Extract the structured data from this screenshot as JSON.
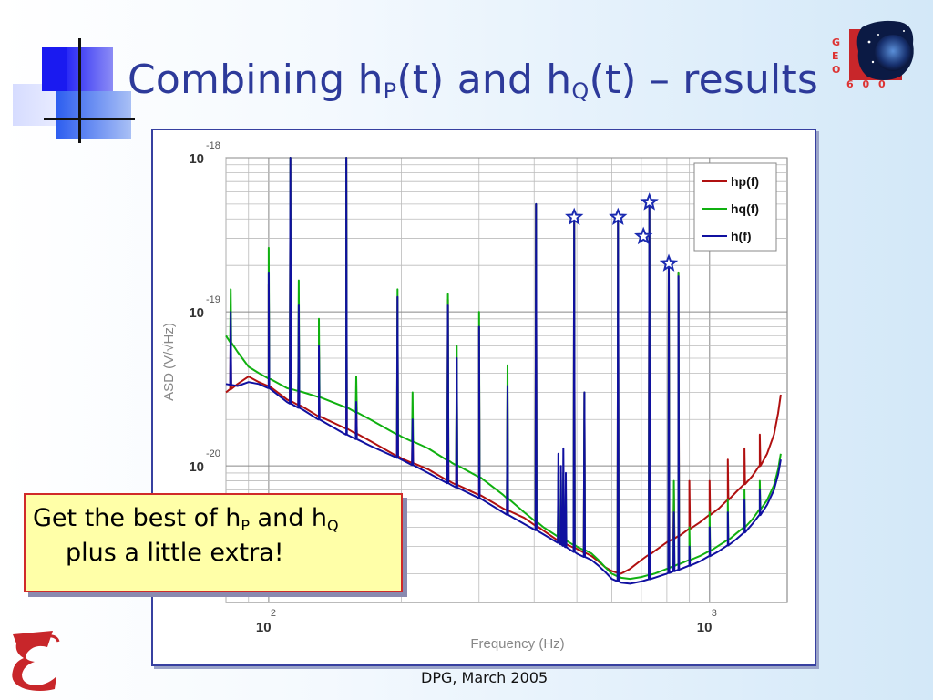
{
  "slide": {
    "title_parts": [
      "Combining h",
      "P",
      "(t) and h",
      "Q",
      "(t) – results"
    ],
    "footer": "DPG, March 2005",
    "geo_letters": [
      "G",
      "E",
      "O",
      "6",
      "0",
      "0"
    ],
    "callout": {
      "line1_parts": [
        "Get the best of h",
        "P",
        " and h",
        "Q"
      ],
      "line2": "plus a little extra!"
    }
  },
  "chart_data": {
    "type": "line",
    "xlabel": "Frequency (Hz)",
    "ylabel": "ASD (V/√Hz)",
    "x_scale": "log",
    "y_scale": "log",
    "xlim": [
      80,
      1500
    ],
    "ylim": [
      1.3e-21,
      1e-18
    ],
    "x_ticks": [
      {
        "value": 100,
        "base": "10",
        "exp": "2"
      },
      {
        "value": 1000,
        "base": "10",
        "exp": "3"
      }
    ],
    "y_ticks": [
      {
        "value": 1e-18,
        "base": "10",
        "exp": "-18"
      },
      {
        "value": 1e-19,
        "base": "10",
        "exp": "-19"
      },
      {
        "value": 1e-20,
        "base": "10",
        "exp": "-20"
      }
    ],
    "grid": true,
    "legend_position": "top-right",
    "colors": {
      "hp": "#b01010",
      "hq": "#10b010",
      "h": "#1010a0"
    },
    "series": [
      {
        "name": "hp(f)",
        "key": "hp",
        "points": [
          [
            80,
            3e-20
          ],
          [
            85,
            3.4e-20
          ],
          [
            90,
            3.8e-20
          ],
          [
            95,
            3.5e-20
          ],
          [
            100,
            3.3e-20
          ],
          [
            110,
            2.7e-20
          ],
          [
            120,
            2.4e-20
          ],
          [
            130,
            2.1e-20
          ],
          [
            150,
            1.75e-20
          ],
          [
            170,
            1.45e-20
          ],
          [
            200,
            1.12e-20
          ],
          [
            230,
            9.5e-21
          ],
          [
            260,
            7.8e-21
          ],
          [
            300,
            6.5e-21
          ],
          [
            340,
            5.3e-21
          ],
          [
            380,
            4.6e-21
          ],
          [
            420,
            3.8e-21
          ],
          [
            460,
            3.2e-21
          ],
          [
            500,
            2.9e-21
          ],
          [
            540,
            2.6e-21
          ],
          [
            560,
            2.4e-21
          ],
          [
            580,
            2.2e-21
          ],
          [
            600,
            2.08e-21
          ],
          [
            630,
            2e-21
          ],
          [
            660,
            2.15e-21
          ],
          [
            700,
            2.45e-21
          ],
          [
            750,
            2.8e-21
          ],
          [
            800,
            3.2e-21
          ],
          [
            850,
            3.5e-21
          ],
          [
            900,
            3.9e-21
          ],
          [
            950,
            4.3e-21
          ],
          [
            1000,
            4.8e-21
          ],
          [
            1050,
            5.3e-21
          ],
          [
            1100,
            6e-21
          ],
          [
            1150,
            6.8e-21
          ],
          [
            1200,
            7.6e-21
          ],
          [
            1250,
            8.6e-21
          ],
          [
            1300,
            1e-20
          ],
          [
            1350,
            1.2e-20
          ],
          [
            1400,
            1.6e-20
          ],
          [
            1430,
            2.2e-20
          ],
          [
            1450,
            2.9e-20
          ]
        ]
      },
      {
        "name": "hq(f)",
        "key": "hq",
        "points": [
          [
            80,
            7e-20
          ],
          [
            85,
            5.5e-20
          ],
          [
            90,
            4.4e-20
          ],
          [
            95,
            4e-20
          ],
          [
            100,
            3.7e-20
          ],
          [
            110,
            3.2e-20
          ],
          [
            120,
            3e-20
          ],
          [
            130,
            2.8e-20
          ],
          [
            150,
            2.4e-20
          ],
          [
            170,
            2e-20
          ],
          [
            200,
            1.55e-20
          ],
          [
            230,
            1.3e-20
          ],
          [
            260,
            1.05e-20
          ],
          [
            300,
            8.5e-21
          ],
          [
            340,
            6.5e-21
          ],
          [
            380,
            5e-21
          ],
          [
            420,
            4e-21
          ],
          [
            460,
            3.4e-21
          ],
          [
            500,
            3e-21
          ],
          [
            540,
            2.7e-21
          ],
          [
            560,
            2.45e-21
          ],
          [
            580,
            2.2e-21
          ],
          [
            600,
            2e-21
          ],
          [
            630,
            1.88e-21
          ],
          [
            660,
            1.85e-21
          ],
          [
            700,
            1.9e-21
          ],
          [
            750,
            2e-21
          ],
          [
            800,
            2.15e-21
          ],
          [
            850,
            2.3e-21
          ],
          [
            900,
            2.45e-21
          ],
          [
            950,
            2.6e-21
          ],
          [
            1000,
            2.8e-21
          ],
          [
            1050,
            3.05e-21
          ],
          [
            1100,
            3.3e-21
          ],
          [
            1150,
            3.65e-21
          ],
          [
            1200,
            4e-21
          ],
          [
            1250,
            4.5e-21
          ],
          [
            1300,
            5.2e-21
          ],
          [
            1350,
            6e-21
          ],
          [
            1400,
            7.5e-21
          ],
          [
            1430,
            9.5e-21
          ],
          [
            1450,
            1.2e-20
          ]
        ]
      },
      {
        "name": "h(f)",
        "key": "h",
        "points": [
          [
            80,
            3.4e-20
          ],
          [
            85,
            3.3e-20
          ],
          [
            90,
            3.5e-20
          ],
          [
            95,
            3.4e-20
          ],
          [
            100,
            3.2e-20
          ],
          [
            110,
            2.6e-20
          ],
          [
            120,
            2.3e-20
          ],
          [
            130,
            2e-20
          ],
          [
            150,
            1.6e-20
          ],
          [
            170,
            1.35e-20
          ],
          [
            200,
            1.1e-20
          ],
          [
            230,
            9e-21
          ],
          [
            260,
            7.5e-21
          ],
          [
            300,
            6.2e-21
          ],
          [
            340,
            5e-21
          ],
          [
            380,
            4.2e-21
          ],
          [
            420,
            3.6e-21
          ],
          [
            460,
            3.1e-21
          ],
          [
            500,
            2.7e-21
          ],
          [
            540,
            2.45e-21
          ],
          [
            560,
            2.25e-21
          ],
          [
            580,
            2.05e-21
          ],
          [
            600,
            1.85e-21
          ],
          [
            630,
            1.75e-21
          ],
          [
            660,
            1.72e-21
          ],
          [
            700,
            1.78e-21
          ],
          [
            750,
            1.88e-21
          ],
          [
            800,
            2e-21
          ],
          [
            850,
            2.12e-21
          ],
          [
            900,
            2.25e-21
          ],
          [
            950,
            2.4e-21
          ],
          [
            1000,
            2.6e-21
          ],
          [
            1050,
            2.8e-21
          ],
          [
            1100,
            3.05e-21
          ],
          [
            1150,
            3.35e-21
          ],
          [
            1200,
            3.7e-21
          ],
          [
            1250,
            4.2e-21
          ],
          [
            1300,
            4.8e-21
          ],
          [
            1350,
            5.6e-21
          ],
          [
            1400,
            7e-21
          ],
          [
            1430,
            8.8e-21
          ],
          [
            1450,
            1.1e-20
          ]
        ]
      }
    ],
    "peaks": [
      {
        "f": 82,
        "hp": 8e-20,
        "hq": 1.4e-19,
        "h": 1e-19
      },
      {
        "f": 100,
        "hp": 1.5e-19,
        "hq": 2.6e-19,
        "h": 1.8e-19
      },
      {
        "f": 112,
        "hp": 1e-18,
        "hq": 1e-18,
        "h": 1e-18
      },
      {
        "f": 117,
        "hp": 9e-20,
        "hq": 1.6e-19,
        "h": 1.1e-19
      },
      {
        "f": 130,
        "hp": 6e-20,
        "hq": 9e-20,
        "h": 6e-20
      },
      {
        "f": 150,
        "hp": 1e-18,
        "hq": 1e-18,
        "h": 1e-18
      },
      {
        "f": 158,
        "hp": 2.6e-20,
        "hq": 3.8e-20,
        "h": 2.6e-20
      },
      {
        "f": 196,
        "hp": 1.25e-19,
        "hq": 1.4e-19,
        "h": 1.25e-19
      },
      {
        "f": 212,
        "hp": 2e-20,
        "hq": 3e-20,
        "h": 2e-20
      },
      {
        "f": 255,
        "hp": 1.2e-19,
        "hq": 1.3e-19,
        "h": 1.1e-19
      },
      {
        "f": 267,
        "hp": 5e-20,
        "hq": 6e-20,
        "h": 5e-20
      },
      {
        "f": 300,
        "hp": 8e-20,
        "hq": 1e-19,
        "h": 8e-20
      },
      {
        "f": 348,
        "hp": 3e-20,
        "hq": 4.5e-20,
        "h": 3.3e-20
      },
      {
        "f": 404,
        "hp": 5e-19,
        "hq": 5e-19,
        "h": 5e-19
      },
      {
        "f": 454,
        "hp": 7e-21,
        "hq": 9e-21,
        "h": 1.2e-20
      },
      {
        "f": 460,
        "hp": 6e-21,
        "hq": 8e-21,
        "h": 1e-20
      },
      {
        "f": 466,
        "hp": 7e-21,
        "hq": 9e-21,
        "h": 1.3e-20
      },
      {
        "f": 472,
        "hp": 5e-21,
        "hq": 7e-21,
        "h": 9e-21
      },
      {
        "f": 493,
        "hp": 4e-19,
        "hq": 4e-19,
        "h": 4e-19
      },
      {
        "f": 520,
        "hp": 3e-20,
        "hq": 3e-20,
        "h": 3e-20
      },
      {
        "f": 620,
        "hp": 4e-19,
        "hq": 4e-19,
        "h": 4e-19
      },
      {
        "f": 730,
        "hp": 5e-19,
        "hq": 5e-19,
        "h": 5e-19
      },
      {
        "f": 808,
        "hp": 2e-19,
        "hq": 2.2e-19,
        "h": 2e-19
      },
      {
        "f": 830,
        "hp": 7e-21,
        "hq": 8e-21,
        "h": 5e-21
      },
      {
        "f": 850,
        "hp": 1.8e-19,
        "hq": 1.8e-19,
        "h": 1.7e-19
      },
      {
        "f": 900,
        "hp": 8e-21,
        "hq": 4e-21,
        "h": 3e-21
      },
      {
        "f": 1000,
        "hp": 8e-21,
        "hq": 5e-21,
        "h": 4e-21
      },
      {
        "f": 1100,
        "hp": 1.1e-20,
        "hq": 6e-21,
        "h": 5e-21
      },
      {
        "f": 1200,
        "hp": 1.3e-20,
        "hq": 7e-21,
        "h": 6e-21
      },
      {
        "f": 1300,
        "hp": 1.6e-20,
        "hq": 8e-21,
        "h": 7e-21
      }
    ],
    "star_markers_hz": [
      493,
      620,
      708,
      730,
      808
    ]
  }
}
